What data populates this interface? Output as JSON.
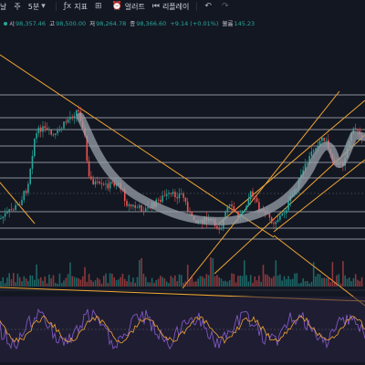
{
  "toolbar": {
    "items": [
      "날",
      "주",
      "5분"
    ],
    "indicator_label": "지표",
    "alert_label": "얼러트",
    "replay_label": "리플레이"
  },
  "ohlc": {
    "open_key": "시",
    "open": "98,357.46",
    "high_key": "고",
    "high": "98,500.00",
    "low_key": "저",
    "low": "98,264.78",
    "close_key": "종",
    "close": "98,366.60",
    "change": "+9.14 (+0.01%)",
    "volume_key": "볼륨",
    "volume": "145.23"
  },
  "colors": {
    "background": "#131722",
    "up": "#26a69a",
    "down": "#ef5350",
    "trendline": "#f0a533",
    "horizontal": "#d1d4dc",
    "path": "#9aa0aa",
    "oscillator": "#7e57c2",
    "oscillator_fill": "#2a2340"
  },
  "icons": [
    "dropdown-icon",
    "indicator-icon",
    "layout-icon",
    "alert-icon",
    "replay-icon",
    "undo-icon",
    "redo-icon"
  ],
  "chart_data": {
    "type": "candlestick",
    "x": [],
    "series": [],
    "note_values": []
  }
}
